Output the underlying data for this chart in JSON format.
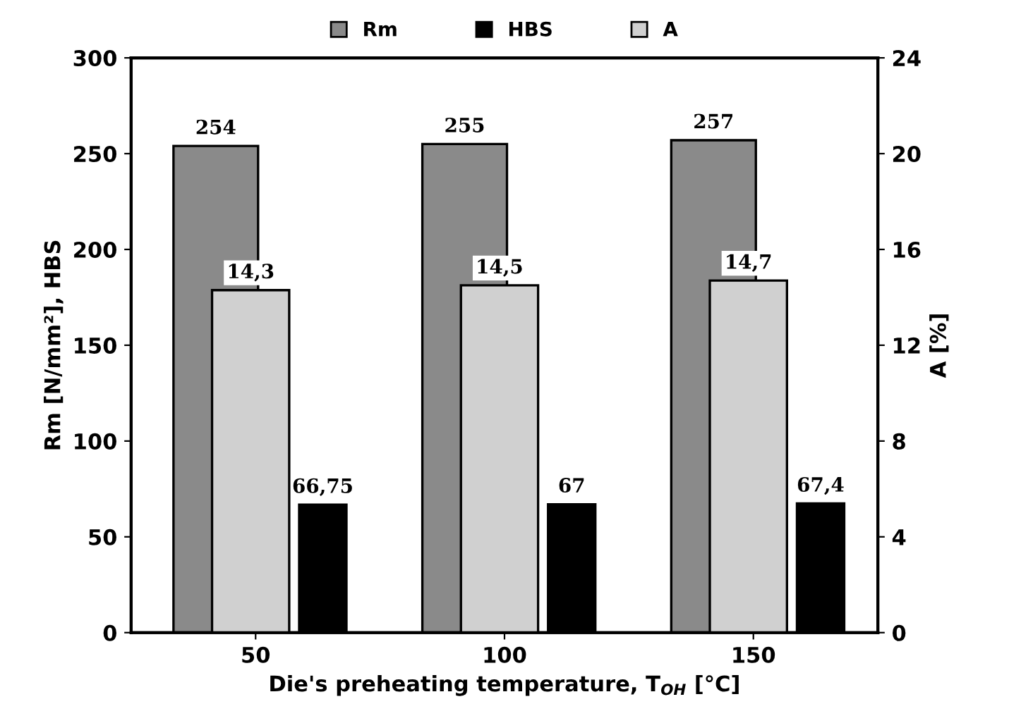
{
  "chart_data": {
    "type": "bar",
    "categories": [
      "50",
      "100",
      "150"
    ],
    "xlabel": "Die's preheating temperature, T$_{OH}$ [°C]",
    "ylabel": "Rm [N/mm²], HBS",
    "y2label": "A [%]",
    "series": [
      {
        "name": "Rm",
        "color": "#8a8a8a",
        "values": [
          254,
          255,
          257
        ],
        "value_labels": [
          "254",
          "255",
          "257"
        ]
      },
      {
        "name": "HBS",
        "color": "#000000",
        "values": [
          66.75,
          67,
          67.4
        ],
        "value_labels": [
          "66,75",
          "67",
          "67,4"
        ]
      },
      {
        "name": "A",
        "color": "#d0d0d0",
        "axis": "y2",
        "values": [
          14.3,
          14.5,
          14.7
        ],
        "value_labels": [
          "14,3",
          "14,5",
          "14,7"
        ]
      }
    ],
    "ylim": [
      0,
      300
    ],
    "yticks": [
      0,
      50,
      100,
      150,
      200,
      250,
      300
    ],
    "y2lim": [
      0,
      24
    ],
    "y2ticks": [
      0,
      4,
      8,
      12,
      16,
      20,
      24
    ],
    "legend": "top",
    "grid": false
  }
}
